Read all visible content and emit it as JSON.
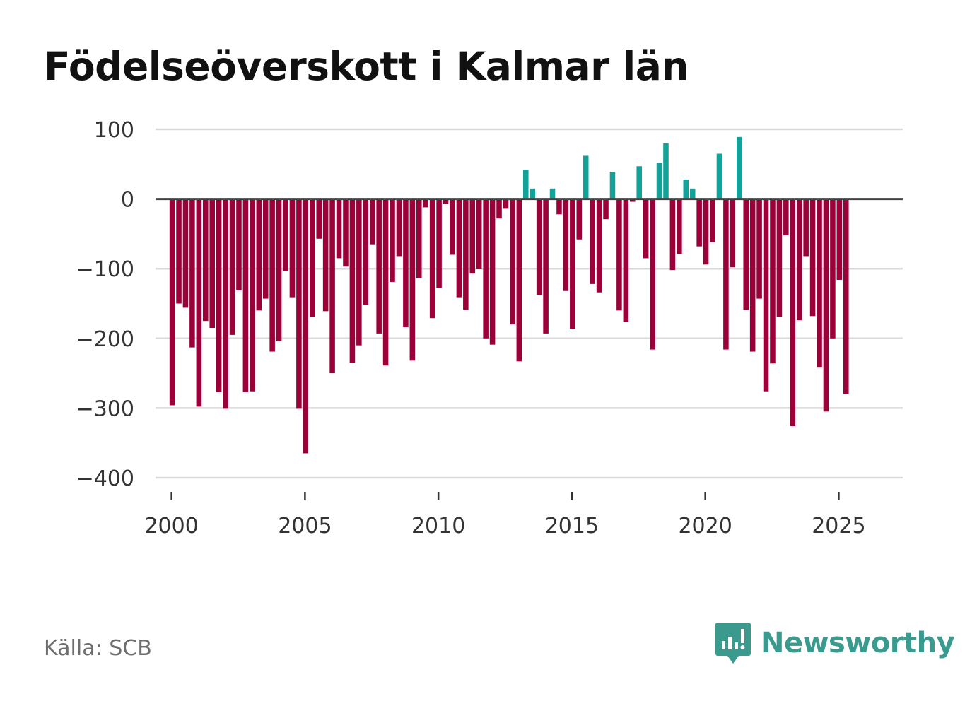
{
  "title": "Födelseöverskott i Kalmar län",
  "source": "Källa: SCB",
  "brand": {
    "name": "Newsworthy",
    "icon": "newsworthy-logo-icon",
    "color": "#3a9a8e"
  },
  "colors": {
    "positive": "#11a39a",
    "negative": "#9c0039",
    "grid": "#d9d9d9",
    "zero": "#444444"
  },
  "chart_data": {
    "type": "bar",
    "title": "Födelseöverskott i Kalmar län",
    "xlabel": "",
    "ylabel": "",
    "ylim": [
      -400,
      100
    ],
    "yticks": [
      100,
      0,
      -100,
      -200,
      -300,
      -400
    ],
    "ytick_labels": [
      "100",
      "0",
      "−100",
      "−200",
      "−300",
      "−400"
    ],
    "xlim": [
      1999.4,
      2027.4
    ],
    "xticks": [
      2000,
      2005,
      2010,
      2015,
      2020,
      2025
    ],
    "xtick_labels": [
      "2000",
      "2005",
      "2010",
      "2015",
      "2020",
      "2025"
    ],
    "grid": true,
    "frequency": "quarterly",
    "start_year": 2000,
    "values": [
      -296,
      -150,
      -156,
      -213,
      -298,
      -175,
      -185,
      -277,
      -301,
      -195,
      -131,
      -277,
      -276,
      -160,
      -143,
      -219,
      -204,
      -103,
      -141,
      -301,
      -365,
      -169,
      -57,
      -161,
      -250,
      -85,
      -97,
      -235,
      -210,
      -152,
      -65,
      -193,
      -239,
      -119,
      -82,
      -184,
      -232,
      -114,
      -12,
      -171,
      -128,
      -7,
      -80,
      -141,
      -159,
      -107,
      -100,
      -200,
      -209,
      -28,
      -14,
      -180,
      -233,
      42,
      15,
      -138,
      -193,
      15,
      -22,
      -132,
      -186,
      -58,
      62,
      -122,
      -134,
      -29,
      39,
      -160,
      -176,
      -4,
      47,
      -85,
      -216,
      52,
      80,
      -102,
      -79,
      28,
      15,
      -68,
      -94,
      -62,
      65,
      -216,
      -98,
      89,
      -159,
      -219,
      -143,
      -276,
      -236,
      -169,
      -52,
      -326,
      -174,
      -82,
      -168,
      -242,
      -305,
      -200,
      -116,
      -280
    ]
  }
}
